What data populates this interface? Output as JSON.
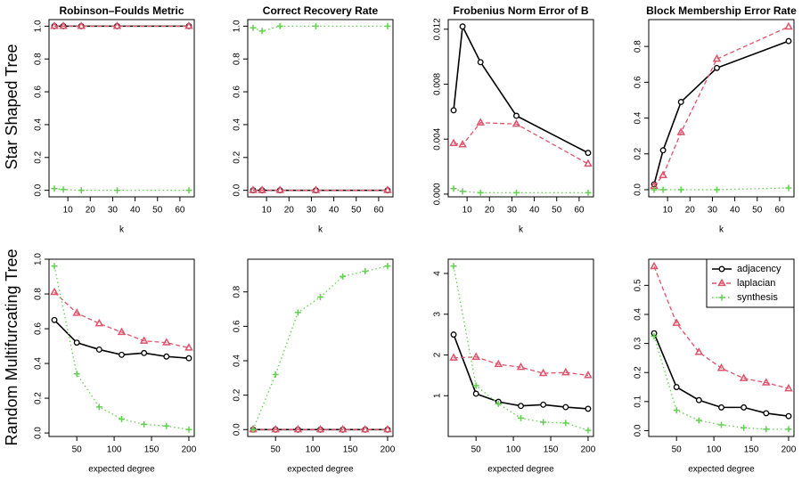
{
  "row_labels": [
    "Star Shaped Tree",
    "Random Multifurcating Tree"
  ],
  "chart_data": [
    {
      "type": "line",
      "title": "Robinson–Foulds Metric",
      "xlabel": "k",
      "x": [
        4,
        8,
        16,
        32,
        64
      ],
      "xlim": [
        1.6,
        66.4
      ],
      "xticks": [
        10,
        20,
        30,
        40,
        50,
        60
      ],
      "ylim": [
        -0.04,
        1.04
      ],
      "yticks": [
        {
          "value": 0,
          "label": "0.0"
        },
        0.2,
        0.4,
        0.6,
        0.8,
        {
          "value": 1,
          "label": "1.0"
        }
      ],
      "series": [
        {
          "name": "adjacency",
          "color": "#000000",
          "marker": "circle",
          "dash": "solid",
          "values": [
            1,
            1,
            1,
            1,
            1
          ]
        },
        {
          "name": "laplacian",
          "color": "#df536b",
          "marker": "triangle",
          "dash": "dashed",
          "values": [
            1,
            1,
            1,
            1,
            1
          ]
        },
        {
          "name": "synthesis",
          "color": "#61d04f",
          "marker": "plus",
          "dash": "dotted",
          "values": [
            0.01,
            0.005,
            0,
            0,
            0
          ]
        }
      ]
    },
    {
      "type": "line",
      "title": "Correct Recovery Rate",
      "xlabel": "k",
      "x": [
        4,
        8,
        16,
        32,
        64
      ],
      "xlim": [
        1.6,
        66.4
      ],
      "xticks": [
        10,
        20,
        30,
        40,
        50,
        60
      ],
      "ylim": [
        -0.04,
        1.04
      ],
      "yticks": [
        {
          "value": 0,
          "label": "0.0"
        },
        0.2,
        0.4,
        0.6,
        0.8,
        {
          "value": 1,
          "label": "1.0"
        }
      ],
      "series": [
        {
          "name": "adjacency",
          "color": "#000000",
          "marker": "circle",
          "dash": "solid",
          "values": [
            0,
            0,
            0,
            0,
            0
          ]
        },
        {
          "name": "laplacian",
          "color": "#df536b",
          "marker": "triangle",
          "dash": "dashed",
          "values": [
            0,
            0,
            0,
            0,
            0
          ]
        },
        {
          "name": "synthesis",
          "color": "#61d04f",
          "marker": "plus",
          "dash": "dotted",
          "values": [
            0.99,
            0.97,
            1,
            1,
            1
          ]
        }
      ]
    },
    {
      "type": "line",
      "title": "Frobenius Norm Error of B",
      "xlabel": "k",
      "x": [
        4,
        8,
        16,
        32,
        64
      ],
      "xlim": [
        1.6,
        66.4
      ],
      "xticks": [
        10,
        20,
        30,
        40,
        50,
        60
      ],
      "ylim": [
        -0.0002,
        0.0127
      ],
      "yticks": [
        {
          "value": 0,
          "label": "0.000"
        },
        0.004,
        0.008,
        0.012
      ],
      "series": [
        {
          "name": "adjacency",
          "color": "#000000",
          "marker": "circle",
          "dash": "solid",
          "values": [
            0.0061,
            0.0122,
            0.0096,
            0.0057,
            0.003
          ]
        },
        {
          "name": "laplacian",
          "color": "#df536b",
          "marker": "triangle",
          "dash": "dashed",
          "values": [
            0.0037,
            0.0036,
            0.0052,
            0.0051,
            0.0022
          ]
        },
        {
          "name": "synthesis",
          "color": "#61d04f",
          "marker": "plus",
          "dash": "dotted",
          "values": [
            0.0004,
            0.0002,
            0.0001,
            0.0001,
            0.0001
          ]
        }
      ]
    },
    {
      "type": "line",
      "title": "Block Membership Error Rate",
      "xlabel": "k",
      "x": [
        4,
        8,
        16,
        32,
        64
      ],
      "xlim": [
        1.6,
        66.4
      ],
      "xticks": [
        10,
        20,
        30,
        40,
        50,
        60
      ],
      "ylim": [
        -0.04,
        0.95
      ],
      "yticks": [
        {
          "value": 0,
          "label": "0.0"
        },
        0.2,
        0.4,
        0.6,
        0.8
      ],
      "series": [
        {
          "name": "adjacency",
          "color": "#000000",
          "marker": "circle",
          "dash": "solid",
          "values": [
            0.03,
            0.22,
            0.49,
            0.68,
            0.83
          ]
        },
        {
          "name": "laplacian",
          "color": "#df536b",
          "marker": "triangle",
          "dash": "dashed",
          "values": [
            0.02,
            0.08,
            0.32,
            0.73,
            0.91
          ]
        },
        {
          "name": "synthesis",
          "color": "#61d04f",
          "marker": "plus",
          "dash": "dotted",
          "values": [
            0,
            0,
            0,
            0,
            0.01
          ]
        }
      ]
    },
    {
      "type": "line",
      "xlabel": "expected degree",
      "x": [
        20,
        50,
        80,
        110,
        140,
        170,
        200
      ],
      "xlim": [
        12.8,
        207.2
      ],
      "xticks": [
        50,
        100,
        150,
        200
      ],
      "ylim": [
        -0.02,
        1.0
      ],
      "yticks": [
        {
          "value": 0,
          "label": "0.0"
        },
        0.2,
        0.4,
        0.6,
        0.8,
        {
          "value": 1,
          "label": "1.0"
        }
      ],
      "series": [
        {
          "name": "adjacency",
          "color": "#000000",
          "marker": "circle",
          "dash": "solid",
          "values": [
            0.65,
            0.52,
            0.48,
            0.45,
            0.46,
            0.44,
            0.43
          ]
        },
        {
          "name": "laplacian",
          "color": "#df536b",
          "marker": "triangle",
          "dash": "dashed",
          "values": [
            0.81,
            0.69,
            0.63,
            0.58,
            0.53,
            0.52,
            0.49
          ]
        },
        {
          "name": "synthesis",
          "color": "#61d04f",
          "marker": "plus",
          "dash": "dotted",
          "values": [
            0.96,
            0.34,
            0.15,
            0.08,
            0.05,
            0.04,
            0.02
          ]
        }
      ]
    },
    {
      "type": "line",
      "xlabel": "expected degree",
      "x": [
        20,
        50,
        80,
        110,
        140,
        170,
        200
      ],
      "xlim": [
        12.8,
        207.2
      ],
      "xticks": [
        50,
        100,
        150,
        200
      ],
      "ylim": [
        -0.04,
        0.99
      ],
      "yticks": [
        {
          "value": 0,
          "label": "0.0"
        },
        0.2,
        0.4,
        0.6,
        0.8
      ],
      "series": [
        {
          "name": "adjacency",
          "color": "#000000",
          "marker": "circle",
          "dash": "solid",
          "values": [
            0,
            0,
            0,
            0,
            0,
            0,
            0
          ]
        },
        {
          "name": "laplacian",
          "color": "#df536b",
          "marker": "triangle",
          "dash": "dashed",
          "values": [
            0,
            0,
            0,
            0,
            0,
            0,
            0
          ]
        },
        {
          "name": "synthesis",
          "color": "#61d04f",
          "marker": "plus",
          "dash": "dotted",
          "values": [
            0,
            0.32,
            0.68,
            0.77,
            0.89,
            0.92,
            0.95
          ]
        }
      ]
    },
    {
      "type": "line",
      "xlabel": "expected degree",
      "x": [
        20,
        50,
        80,
        110,
        140,
        170,
        200
      ],
      "xlim": [
        12.8,
        207.2
      ],
      "xticks": [
        50,
        100,
        150,
        200
      ],
      "ylim": [
        0,
        4.35
      ],
      "yticks": [
        1,
        2,
        3,
        4
      ],
      "series": [
        {
          "name": "adjacency",
          "color": "#000000",
          "marker": "circle",
          "dash": "solid",
          "values": [
            2.5,
            1.05,
            0.85,
            0.75,
            0.78,
            0.72,
            0.68
          ]
        },
        {
          "name": "laplacian",
          "color": "#df536b",
          "marker": "triangle",
          "dash": "dashed",
          "values": [
            1.93,
            1.95,
            1.77,
            1.7,
            1.55,
            1.57,
            1.5
          ]
        },
        {
          "name": "synthesis",
          "color": "#61d04f",
          "marker": "plus",
          "dash": "dotted",
          "values": [
            4.18,
            1.25,
            0.8,
            0.45,
            0.35,
            0.33,
            0.15
          ]
        }
      ]
    },
    {
      "type": "line",
      "xlabel": "expected degree",
      "x": [
        20,
        50,
        80,
        110,
        140,
        170,
        200
      ],
      "xlim": [
        12.8,
        207.2
      ],
      "xticks": [
        50,
        100,
        150,
        200
      ],
      "ylim": [
        -0.02,
        0.59
      ],
      "yticks": [
        {
          "value": 0,
          "label": "0.0"
        },
        0.1,
        0.2,
        0.3,
        0.4,
        0.5
      ],
      "legend": "top-right",
      "series": [
        {
          "name": "adjacency",
          "color": "#000000",
          "marker": "circle",
          "dash": "solid",
          "values": [
            0.335,
            0.15,
            0.105,
            0.08,
            0.08,
            0.06,
            0.05
          ]
        },
        {
          "name": "laplacian",
          "color": "#df536b",
          "marker": "triangle",
          "dash": "dashed",
          "values": [
            0.565,
            0.37,
            0.27,
            0.215,
            0.18,
            0.165,
            0.145
          ]
        },
        {
          "name": "synthesis",
          "color": "#61d04f",
          "marker": "plus",
          "dash": "dotted",
          "values": [
            0.325,
            0.07,
            0.035,
            0.02,
            0.01,
            0.005,
            0.005
          ]
        }
      ]
    }
  ]
}
